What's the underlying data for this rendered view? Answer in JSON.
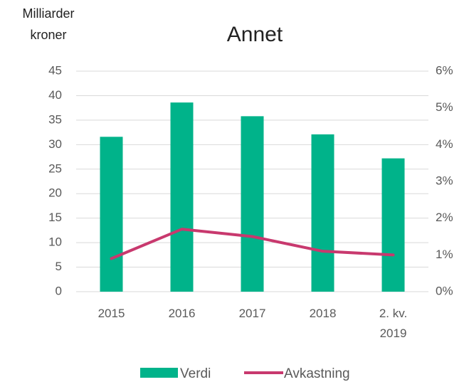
{
  "chart_data": {
    "type": "bar_line",
    "title": "Annet",
    "ylabel": [
      "Milliarder",
      "kroner"
    ],
    "categories": [
      "2015",
      "2016",
      "2017",
      "2018",
      "2. kv. 2019"
    ],
    "series": [
      {
        "name": "Verdi",
        "type": "bar",
        "color": "#00b38a",
        "values": [
          31.6,
          38.6,
          35.8,
          32.1,
          27.2
        ]
      },
      {
        "name": "Avkastning",
        "type": "line",
        "axis": "y2",
        "color": "#c8396e",
        "values": [
          0.9,
          1.7,
          1.5,
          1.1,
          1.0
        ]
      }
    ],
    "ylim": [
      0,
      45
    ],
    "yticks": [
      0,
      5,
      10,
      15,
      20,
      25,
      30,
      35,
      40,
      45
    ],
    "y2lim": [
      0,
      6
    ],
    "y2ticks": [
      {
        "value": 0,
        "label": "0%"
      },
      {
        "value": 1,
        "label": "1%"
      },
      {
        "value": 2,
        "label": "2%"
      },
      {
        "value": 3,
        "label": "3%"
      },
      {
        "value": 4,
        "label": "4%"
      },
      {
        "value": 5,
        "label": "5%"
      },
      {
        "value": 6,
        "label": "6%"
      }
    ],
    "grid": true,
    "legend": "bottom"
  }
}
